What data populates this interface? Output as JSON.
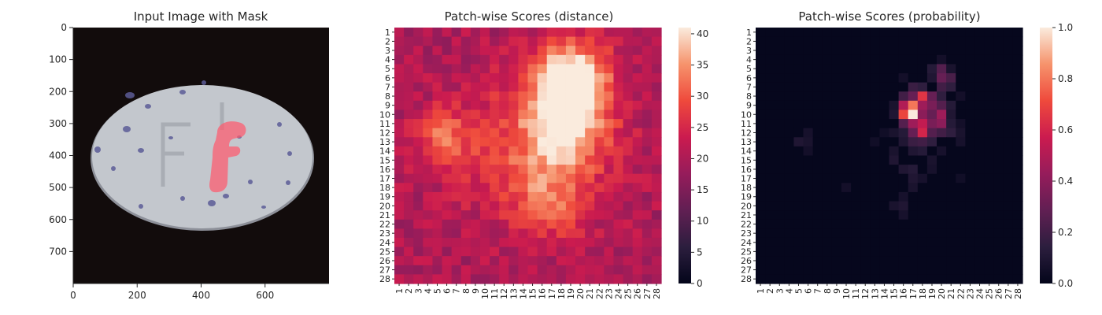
{
  "chart_data": [
    {
      "type": "image",
      "title": "Input Image with Mask",
      "xlim": [
        0,
        800
      ],
      "ylim": [
        800,
        0
      ],
      "xticks": [
        0,
        200,
        400,
        600
      ],
      "yticks": [
        0,
        100,
        200,
        300,
        400,
        500,
        600,
        700
      ],
      "image": {
        "background_color": "#120c0c",
        "object": "white oval pill with embossed letters and blue speckles",
        "object_color": "#c3c7cd",
        "speckle_color": "#5c5c96",
        "mask_color": "#ff5a6e"
      }
    },
    {
      "type": "heatmap",
      "title": "Patch-wise Scores (distance)",
      "rows": 28,
      "cols": 28,
      "xticklabels": [
        "1",
        "2",
        "3",
        "4",
        "5",
        "6",
        "7",
        "8",
        "9",
        "10",
        "11",
        "12",
        "13",
        "14",
        "15",
        "16",
        "17",
        "18",
        "19",
        "20",
        "21",
        "22",
        "23",
        "24",
        "25",
        "26",
        "27",
        "28"
      ],
      "yticklabels": [
        "1",
        "2",
        "3",
        "4",
        "5",
        "6",
        "7",
        "8",
        "9",
        "10",
        "11",
        "12",
        "13",
        "14",
        "15",
        "16",
        "17",
        "18",
        "19",
        "20",
        "21",
        "22",
        "23",
        "24",
        "25",
        "26",
        "27",
        "28"
      ],
      "colormap": "rocket",
      "vmin": 0,
      "vmax": 41,
      "colorbar_ticks": [
        0,
        5,
        10,
        15,
        20,
        25,
        30,
        35,
        40
      ],
      "base_value": 20,
      "hotspots": [
        {
          "row": 9.5,
          "col": 18.5,
          "peak": 21,
          "sigma_row": 4.0,
          "sigma_col": 3.0
        },
        {
          "row": 5.5,
          "col": 19.5,
          "peak": 14,
          "sigma_row": 2.5,
          "sigma_col": 2.5
        },
        {
          "row": 12.5,
          "col": 5.5,
          "peak": 10,
          "sigma_row": 2.0,
          "sigma_col": 2.0
        },
        {
          "row": 19.5,
          "col": 16.5,
          "peak": 9,
          "sigma_row": 3.0,
          "sigma_col": 3.0
        },
        {
          "row": 13.5,
          "col": 14.5,
          "peak": 8,
          "sigma_row": 5.0,
          "sigma_col": 6.0
        }
      ]
    },
    {
      "type": "heatmap",
      "title": "Patch-wise Scores (probability)",
      "rows": 28,
      "cols": 28,
      "xticklabels": [
        "1",
        "2",
        "3",
        "4",
        "5",
        "6",
        "7",
        "8",
        "9",
        "10",
        "11",
        "12",
        "13",
        "14",
        "15",
        "16",
        "17",
        "18",
        "19",
        "20",
        "21",
        "22",
        "23",
        "24",
        "25",
        "26",
        "27",
        "28"
      ],
      "yticklabels": [
        "1",
        "2",
        "3",
        "4",
        "5",
        "6",
        "7",
        "8",
        "9",
        "10",
        "11",
        "12",
        "13",
        "14",
        "15",
        "16",
        "17",
        "18",
        "19",
        "20",
        "21",
        "22",
        "23",
        "24",
        "25",
        "26",
        "27",
        "28"
      ],
      "colormap": "rocket",
      "vmin": 0,
      "vmax": 1,
      "colorbar_ticks": [
        0.0,
        0.2,
        0.4,
        0.6,
        0.8,
        1.0
      ],
      "colorbar_ticklabels": [
        "0.0",
        "0.2",
        "0.4",
        "0.6",
        "0.8",
        "1.0"
      ],
      "cells": [
        {
          "row": 10,
          "col": 17,
          "value": 1.0
        },
        {
          "row": 9,
          "col": 17,
          "value": 0.8
        },
        {
          "row": 10,
          "col": 16,
          "value": 0.7
        },
        {
          "row": 8,
          "col": 18,
          "value": 0.65
        },
        {
          "row": 11,
          "col": 18,
          "value": 0.55
        },
        {
          "row": 12,
          "col": 18,
          "value": 0.6
        },
        {
          "row": 9,
          "col": 16,
          "value": 0.5
        },
        {
          "row": 11,
          "col": 17,
          "value": 0.45
        },
        {
          "row": 10,
          "col": 20,
          "value": 0.45
        },
        {
          "row": 11,
          "col": 20,
          "value": 0.4
        },
        {
          "row": 9,
          "col": 19,
          "value": 0.35
        },
        {
          "row": 8,
          "col": 17,
          "value": 0.3
        },
        {
          "row": 8,
          "col": 19,
          "value": 0.3
        },
        {
          "row": 9,
          "col": 18,
          "value": 0.45
        },
        {
          "row": 10,
          "col": 18,
          "value": 0.4
        },
        {
          "row": 11,
          "col": 19,
          "value": 0.35
        },
        {
          "row": 12,
          "col": 17,
          "value": 0.3
        },
        {
          "row": 12,
          "col": 19,
          "value": 0.25
        },
        {
          "row": 10,
          "col": 19,
          "value": 0.3
        },
        {
          "row": 11,
          "col": 16,
          "value": 0.25
        },
        {
          "row": 6,
          "col": 20,
          "value": 0.3
        },
        {
          "row": 5,
          "col": 20,
          "value": 0.25
        },
        {
          "row": 7,
          "col": 20,
          "value": 0.2
        },
        {
          "row": 6,
          "col": 21,
          "value": 0.22
        },
        {
          "row": 7,
          "col": 17,
          "value": 0.18
        },
        {
          "row": 8,
          "col": 16,
          "value": 0.2
        },
        {
          "row": 7,
          "col": 18,
          "value": 0.15
        },
        {
          "row": 7,
          "col": 21,
          "value": 0.15
        },
        {
          "row": 5,
          "col": 19,
          "value": 0.12
        },
        {
          "row": 8,
          "col": 20,
          "value": 0.15
        },
        {
          "row": 9,
          "col": 20,
          "value": 0.25
        },
        {
          "row": 12,
          "col": 20,
          "value": 0.2
        },
        {
          "row": 12,
          "col": 21,
          "value": 0.15
        },
        {
          "row": 13,
          "col": 17,
          "value": 0.18
        },
        {
          "row": 13,
          "col": 18,
          "value": 0.2
        },
        {
          "row": 13,
          "col": 19,
          "value": 0.15
        },
        {
          "row": 14,
          "col": 18,
          "value": 0.12
        },
        {
          "row": 14,
          "col": 17,
          "value": 0.1
        },
        {
          "row": 12,
          "col": 16,
          "value": 0.12
        },
        {
          "row": 13,
          "col": 16,
          "value": 0.1
        },
        {
          "row": 11,
          "col": 21,
          "value": 0.12
        },
        {
          "row": 10,
          "col": 21,
          "value": 0.1
        },
        {
          "row": 9,
          "col": 21,
          "value": 0.12
        },
        {
          "row": 10,
          "col": 15,
          "value": 0.1
        },
        {
          "row": 9,
          "col": 15,
          "value": 0.08
        },
        {
          "row": 12,
          "col": 15,
          "value": 0.08
        },
        {
          "row": 14,
          "col": 15,
          "value": 0.08
        },
        {
          "row": 15,
          "col": 15,
          "value": 0.1
        },
        {
          "row": 16,
          "col": 16,
          "value": 0.1
        },
        {
          "row": 16,
          "col": 17,
          "value": 0.12
        },
        {
          "row": 17,
          "col": 17,
          "value": 0.1
        },
        {
          "row": 18,
          "col": 17,
          "value": 0.08
        },
        {
          "row": 19,
          "col": 16,
          "value": 0.07
        },
        {
          "row": 20,
          "col": 16,
          "value": 0.1
        },
        {
          "row": 20,
          "col": 15,
          "value": 0.08
        },
        {
          "row": 21,
          "col": 16,
          "value": 0.07
        },
        {
          "row": 15,
          "col": 19,
          "value": 0.08
        },
        {
          "row": 16,
          "col": 19,
          "value": 0.07
        },
        {
          "row": 17,
          "col": 18,
          "value": 0.07
        },
        {
          "row": 14,
          "col": 20,
          "value": 0.07
        },
        {
          "row": 13,
          "col": 22,
          "value": 0.07
        },
        {
          "row": 12,
          "col": 22,
          "value": 0.08
        },
        {
          "row": 13,
          "col": 5,
          "value": 0.1
        },
        {
          "row": 13,
          "col": 6,
          "value": 0.08
        },
        {
          "row": 12,
          "col": 6,
          "value": 0.07
        },
        {
          "row": 14,
          "col": 6,
          "value": 0.06
        },
        {
          "row": 12,
          "col": 14,
          "value": 0.05
        },
        {
          "row": 13,
          "col": 13,
          "value": 0.05
        },
        {
          "row": 18,
          "col": 10,
          "value": 0.06
        },
        {
          "row": 17,
          "col": 22,
          "value": 0.05
        },
        {
          "row": 5,
          "col": 21,
          "value": 0.08
        },
        {
          "row": 4,
          "col": 20,
          "value": 0.06
        },
        {
          "row": 6,
          "col": 19,
          "value": 0.1
        },
        {
          "row": 6,
          "col": 16,
          "value": 0.06
        },
        {
          "row": 8,
          "col": 22,
          "value": 0.06
        },
        {
          "row": 11,
          "col": 22,
          "value": 0.06
        }
      ]
    }
  ]
}
